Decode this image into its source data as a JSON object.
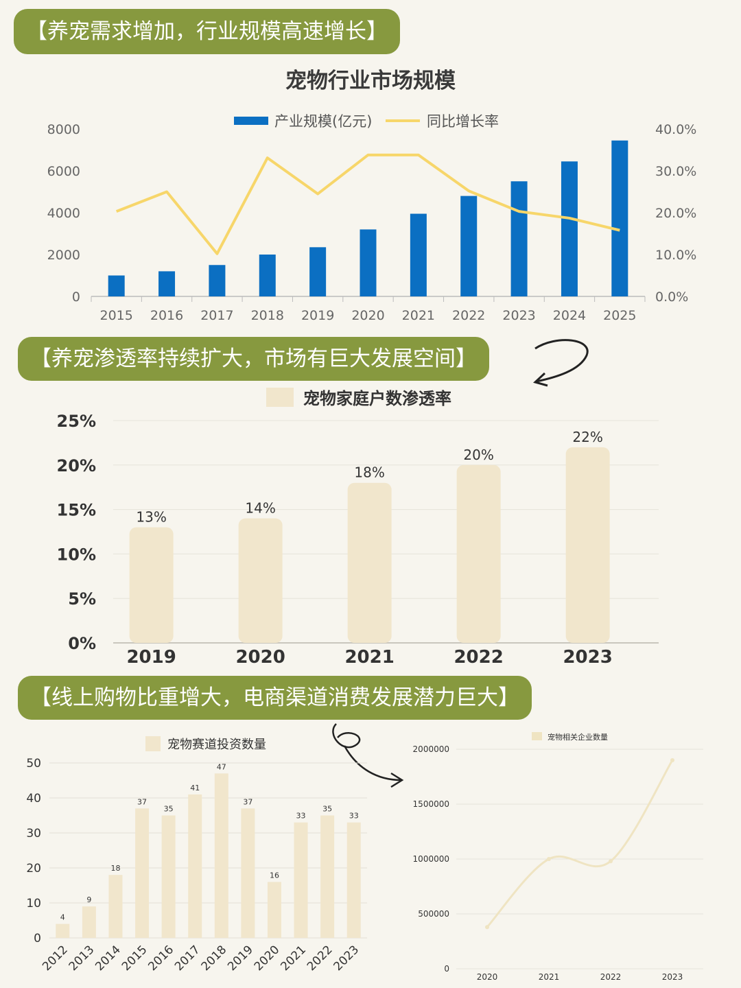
{
  "sections": [
    {
      "heading": "【养宠需求增加，行业规模高速增长】"
    },
    {
      "heading": "【养宠渗透率持续扩大，市场有巨大发展空间】"
    },
    {
      "heading": "【线上购物比重增大，电商渠道消费发展潜力巨大】"
    }
  ],
  "chart_data": [
    {
      "type": "bar",
      "title": "宠物行业市场规模",
      "categories": [
        "2015",
        "2016",
        "2017",
        "2018",
        "2019",
        "2020",
        "2021",
        "2022",
        "2023",
        "2024",
        "2025"
      ],
      "series": [
        {
          "name": "产业规模(亿元)",
          "type": "bar",
          "axis": "left",
          "color": "#0b6fc2",
          "values": [
            1000,
            1200,
            1500,
            2000,
            2350,
            3200,
            3950,
            4800,
            5500,
            6450,
            7450
          ]
        },
        {
          "name": "同比增长率",
          "type": "line",
          "axis": "right",
          "color": "#f7d66a",
          "values": [
            20.3,
            25.0,
            10.2,
            33.1,
            24.5,
            33.8,
            33.8,
            25.2,
            20.3,
            18.7,
            15.8
          ]
        }
      ],
      "left_ticks": [
        "0",
        "2000",
        "4000",
        "6000",
        "8000"
      ],
      "left_range": [
        0,
        8000
      ],
      "right_ticks": [
        "0.0%",
        "10.0%",
        "20.0%",
        "30.0%",
        "40.0%"
      ],
      "right_range": [
        0,
        40
      ],
      "legend_position": "top-center"
    },
    {
      "type": "bar",
      "legend": "宠物家庭户数渗透率",
      "categories": [
        "2019",
        "2020",
        "2021",
        "2022",
        "2023"
      ],
      "values": [
        13,
        14,
        18,
        20,
        22
      ],
      "labels": [
        "13%",
        "14%",
        "18%",
        "20%",
        "22%"
      ],
      "y_ticks": [
        "0%",
        "5%",
        "10%",
        "15%",
        "20%",
        "25%"
      ],
      "ylim": [
        0,
        25
      ],
      "color": "#f1e6cc",
      "grid": true
    },
    {
      "type": "bar",
      "legend": "宠物赛道投资数量",
      "categories": [
        "2012",
        "2013",
        "2014",
        "2015",
        "2016",
        "2017",
        "2018",
        "2019",
        "2020",
        "2021",
        "2022",
        "2023"
      ],
      "values": [
        4,
        9,
        18,
        37,
        35,
        41,
        47,
        37,
        16,
        33,
        35,
        33
      ],
      "y_ticks": [
        "0",
        "10",
        "20",
        "30",
        "40",
        "50"
      ],
      "ylim": [
        0,
        50
      ],
      "color": "#f1e6cc",
      "grid": true
    },
    {
      "type": "line",
      "legend": "宠物相关企业数量",
      "categories": [
        "2020",
        "2021",
        "2022",
        "2023"
      ],
      "values": [
        380000,
        1000000,
        980000,
        1900000
      ],
      "y_ticks": [
        "0",
        "500000",
        "1000000",
        "1500000",
        "2000000"
      ],
      "ylim": [
        0,
        2000000
      ],
      "color": "#efe4c2",
      "grid": true
    }
  ]
}
